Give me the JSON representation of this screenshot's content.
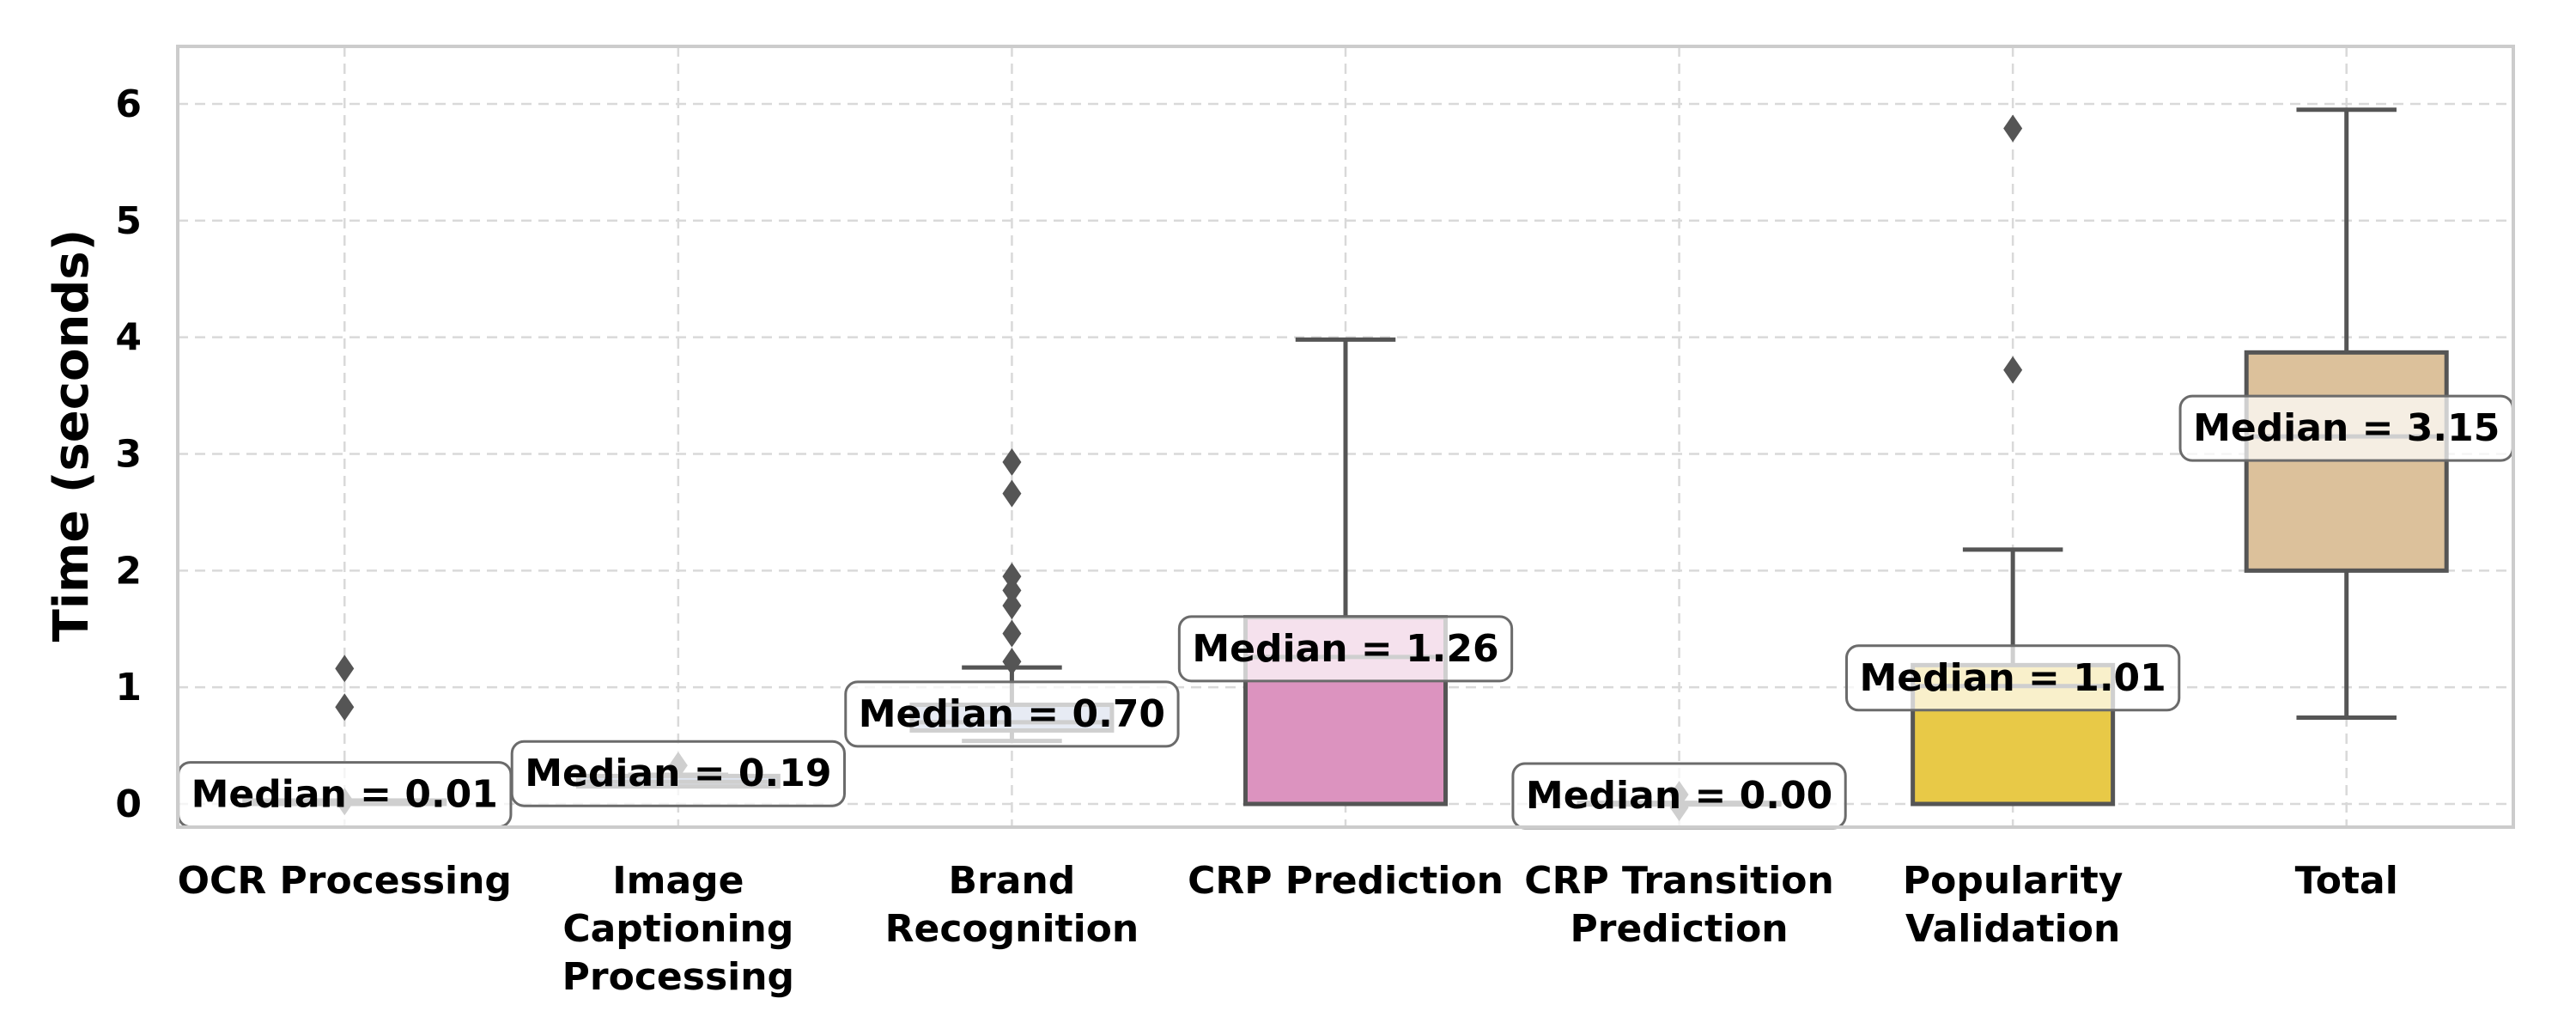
{
  "chart_data": {
    "type": "box",
    "title": "",
    "xlabel": "",
    "ylabel": "Time (seconds)",
    "ylim": [
      -0.18,
      6.5
    ],
    "yticks": [
      0,
      1,
      2,
      3,
      4,
      5,
      6
    ],
    "grid": true,
    "categories": [
      {
        "label": [
          "OCR Processing"
        ],
        "q1": 0.0,
        "median": 0.01,
        "q3": 0.03,
        "whisker_low": 0.0,
        "whisker_high": 0.03,
        "outliers": [
          1.16,
          0.83,
          0.02
        ],
        "color": "#8fb1d9",
        "median_label": "Median = 0.01"
      },
      {
        "label": [
          "Image",
          "Captioning",
          "Processing"
        ],
        "q1": 0.15,
        "median": 0.19,
        "q3": 0.24,
        "whisker_low": 0.15,
        "whisker_high": 0.25,
        "outliers": [
          0.33
        ],
        "color": "#8da0cb",
        "median_label": "Median = 0.19"
      },
      {
        "label": [
          "Brand",
          "Recognition"
        ],
        "q1": 0.63,
        "median": 0.7,
        "q3": 0.85,
        "whisker_low": 0.54,
        "whisker_high": 1.17,
        "outliers": [
          2.93,
          2.66,
          1.95,
          1.83,
          1.7,
          1.46,
          1.22
        ],
        "color": "#a9b8d8",
        "median_label": "Median = 0.70"
      },
      {
        "label": [
          "CRP Prediction"
        ],
        "q1": 0.0,
        "median": 1.26,
        "q3": 1.6,
        "whisker_low": 0.0,
        "whisker_high": 3.98,
        "outliers": [],
        "color": "#dc93bf",
        "median_label": "Median = 1.26"
      },
      {
        "label": [
          "CRP Transition",
          "Prediction"
        ],
        "q1": 0.0,
        "median": 0.0,
        "q3": 0.01,
        "whisker_low": 0.0,
        "whisker_high": 0.01,
        "outliers": [
          0.08,
          -0.03
        ],
        "color": "#a6d854",
        "median_label": "Median = 0.00"
      },
      {
        "label": [
          "Popularity",
          "Validation"
        ],
        "q1": 0.0,
        "median": 1.01,
        "q3": 1.19,
        "whisker_low": 0.0,
        "whisker_high": 2.18,
        "outliers": [
          5.79,
          3.72
        ],
        "color": "#e8c947",
        "median_label": "Median = 1.01"
      },
      {
        "label": [
          "Total"
        ],
        "q1": 2.0,
        "median": 3.15,
        "q3": 3.87,
        "whisker_low": 0.74,
        "whisker_high": 5.95,
        "outliers": [],
        "color": "#dcc19b",
        "median_label": "Median = 3.15"
      }
    ]
  }
}
